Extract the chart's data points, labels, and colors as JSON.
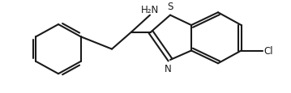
{
  "background_color": "#ffffff",
  "line_color": "#1a1a1a",
  "line_width": 1.5,
  "font_size_label": 8.5,
  "figsize": [
    3.59,
    1.16
  ],
  "dpi": 100,
  "xlim": [
    0,
    359
  ],
  "ylim": [
    0,
    116
  ]
}
